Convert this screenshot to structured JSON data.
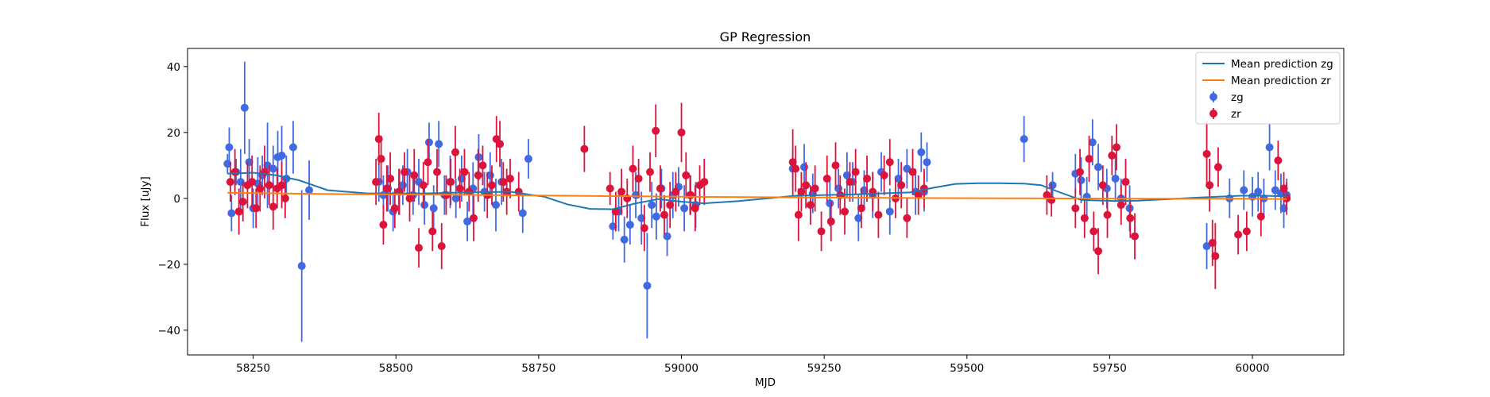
{
  "chart_data": {
    "type": "scatter",
    "title": "GP Regression",
    "xlabel": "MJD",
    "ylabel": "Flux [uJy]",
    "xlim": [
      58135,
      60160
    ],
    "ylim": [
      -47.5,
      45.5
    ],
    "xticks": [
      58250,
      58500,
      58750,
      59000,
      59250,
      59500,
      59750,
      60000
    ],
    "yticks": [
      -40,
      -20,
      0,
      20,
      40
    ],
    "grid": false,
    "legend_position": "top-right",
    "colors": {
      "zg": "#4169e1",
      "zr": "#dc143c",
      "mean_zg": "#1f77b4",
      "mean_zr": "#ff7f0e"
    },
    "lines": [
      {
        "name": "Mean prediction zg",
        "x": [
          58205,
          58250,
          58290,
          58330,
          58380,
          58450,
          58550,
          58620,
          58700,
          58760,
          58800,
          58840,
          58880,
          58920,
          58960,
          59000,
          59040,
          59100,
          59200,
          59300,
          59400,
          59440,
          59480,
          59520,
          59560,
          59600,
          59630,
          59660,
          59700,
          59760,
          59800,
          59900,
          59980,
          60020,
          60060
        ],
        "y": [
          7.5,
          7.8,
          7.0,
          5.5,
          2.5,
          1.5,
          1.5,
          1.8,
          2.0,
          0.5,
          -1.8,
          -3.2,
          -3.3,
          -1.5,
          -0.2,
          -1.0,
          -1.5,
          -0.8,
          0.8,
          1.2,
          1.8,
          3.2,
          4.4,
          4.6,
          4.6,
          4.5,
          4.0,
          2.0,
          -0.5,
          -0.8,
          -0.7,
          0.2,
          0.8,
          0.8,
          0.6
        ]
      },
      {
        "name": "Mean prediction zr",
        "x": [
          58205,
          58400,
          58600,
          58800,
          59000,
          59200,
          59400,
          59600,
          59800,
          60000,
          60060
        ],
        "y": [
          1.7,
          1.3,
          1.1,
          0.8,
          0.5,
          0.3,
          0.1,
          0.0,
          -0.1,
          -0.1,
          -0.2
        ]
      }
    ],
    "series": [
      {
        "name": "zg",
        "x": [
          58205,
          58208,
          58212,
          58220,
          58228,
          58235,
          58243,
          58250,
          58258,
          58266,
          58275,
          58285,
          58293,
          58300,
          58308,
          58320,
          58335,
          58348,
          58470,
          58478,
          58486,
          58495,
          58505,
          58512,
          58520,
          58530,
          58540,
          58550,
          58558,
          58566,
          58575,
          58585,
          58595,
          58605,
          58615,
          58625,
          58635,
          58645,
          58655,
          58665,
          58675,
          58685,
          58722,
          58732,
          58880,
          58890,
          58900,
          58910,
          58920,
          58930,
          58940,
          58948,
          58956,
          58965,
          58975,
          58985,
          58995,
          59005,
          59015,
          59025,
          59195,
          59215,
          59230,
          59260,
          59275,
          59290,
          59300,
          59310,
          59320,
          59335,
          59350,
          59365,
          59380,
          59395,
          59410,
          59420,
          59425,
          59430,
          59600,
          59650,
          59690,
          59700,
          59710,
          59720,
          59730,
          59745,
          59760,
          59770,
          59785,
          59920,
          59960,
          59985,
          60000,
          60010,
          60020,
          60030,
          60040,
          60050,
          60055,
          60060
        ],
        "y": [
          10.5,
          15.5,
          -4.5,
          8.0,
          5.0,
          27.5,
          11.0,
          -3.0,
          4.5,
          7.0,
          10.0,
          9.0,
          12.5,
          13.0,
          6.0,
          15.5,
          -20.5,
          2.5,
          5.0,
          1.0,
          3.0,
          -4.0,
          2.0,
          4.0,
          8.0,
          1.0,
          5.0,
          -2.0,
          17.0,
          -3.0,
          16.5,
          1.0,
          5.0,
          0.0,
          6.0,
          -7.0,
          3.0,
          12.5,
          2.0,
          7.0,
          -2.0,
          5.0,
          -4.5,
          12.0,
          -8.5,
          -4.0,
          -12.5,
          -8.0,
          1.0,
          -6.0,
          -26.5,
          -2.0,
          -5.5,
          3.0,
          -11.5,
          1.0,
          3.5,
          -3.0,
          1.0,
          -2.0,
          9.0,
          9.5,
          1.5,
          -1.5,
          3.0,
          7.0,
          5.0,
          -6.0,
          2.5,
          1.0,
          8.0,
          -4.0,
          6.0,
          9.0,
          2.0,
          14.0,
          2.0,
          11.0,
          18.0,
          4.0,
          7.5,
          5.5,
          0.5,
          17.0,
          9.5,
          3.0,
          6.0,
          0.0,
          -3.0,
          -14.5,
          0.0,
          2.5,
          0.5,
          2.0,
          0.0,
          15.5,
          2.5,
          1.5,
          -3.0,
          1.0
        ],
        "error": [
          3.0,
          6.0,
          5.5,
          4.0,
          10.0,
          14.0,
          7.0,
          6.0,
          8.0,
          6.0,
          13.0,
          7.0,
          8.0,
          9.0,
          7.0,
          8.0,
          23.0,
          9.0,
          6.0,
          6.0,
          7.0,
          6.0,
          7.0,
          6.0,
          7.0,
          6.0,
          7.0,
          6.0,
          6.0,
          7.0,
          7.0,
          6.0,
          8.0,
          6.0,
          7.0,
          6.0,
          8.0,
          7.0,
          6.0,
          7.0,
          8.0,
          7.0,
          6.0,
          6.0,
          4.0,
          6.0,
          7.0,
          6.0,
          7.0,
          8.0,
          16.0,
          7.0,
          7.0,
          6.0,
          6.0,
          7.0,
          6.0,
          7.0,
          6.0,
          7.0,
          6.0,
          7.0,
          6.0,
          7.0,
          6.0,
          7.0,
          6.0,
          7.0,
          6.0,
          7.0,
          6.0,
          7.0,
          6.0,
          6.0,
          7.0,
          6.0,
          6.0,
          6.0,
          7.0,
          4.0,
          6.0,
          7.0,
          6.0,
          7.0,
          7.0,
          6.0,
          7.0,
          6.0,
          7.0,
          7.0,
          6.0,
          6.0,
          6.0,
          6.0,
          6.0,
          7.0,
          6.0,
          6.0,
          6.0,
          5.0
        ]
      },
      {
        "name": "zr",
        "x": [
          58210,
          58218,
          58225,
          58232,
          58240,
          58248,
          58255,
          58262,
          58270,
          58278,
          58285,
          58292,
          58300,
          58306,
          58465,
          58470,
          58474,
          58478,
          58484,
          58490,
          58498,
          58506,
          58515,
          58524,
          58532,
          58540,
          58548,
          58556,
          58564,
          58572,
          58580,
          58588,
          58596,
          58604,
          58612,
          58620,
          58628,
          58636,
          58644,
          58652,
          58660,
          58668,
          58676,
          58682,
          58688,
          58694,
          58700,
          58715,
          58830,
          58875,
          58885,
          58895,
          58905,
          58915,
          58925,
          58935,
          58945,
          58955,
          58963,
          58970,
          58980,
          58990,
          59000,
          59008,
          59016,
          59024,
          59032,
          59040,
          59195,
          59200,
          59205,
          59210,
          59218,
          59226,
          59234,
          59245,
          59255,
          59262,
          59270,
          59278,
          59286,
          59295,
          59305,
          59315,
          59325,
          59335,
          59345,
          59355,
          59365,
          59375,
          59385,
          59395,
          59405,
          59415,
          59425,
          59640,
          59648,
          59690,
          59698,
          59706,
          59714,
          59722,
          59730,
          59738,
          59746,
          59754,
          59762,
          59770,
          59778,
          59786,
          59794,
          59920,
          59925,
          59930,
          59935,
          59940,
          59975,
          59990,
          60015,
          60045,
          60055,
          60060
        ],
        "y": [
          5.0,
          8.0,
          -4.0,
          -1.0,
          4.0,
          5.0,
          -3.0,
          3.0,
          8.0,
          4.0,
          -2.5,
          3.0,
          4.0,
          0.0,
          5.0,
          18.0,
          12.0,
          -8.0,
          3.0,
          6.0,
          -3.0,
          2.0,
          8.0,
          0.0,
          7.0,
          -15.0,
          4.0,
          11.0,
          -10.0,
          8.0,
          -14.5,
          1.0,
          5.0,
          14.0,
          3.0,
          8.0,
          2.0,
          -6.0,
          7.0,
          10.0,
          1.0,
          4.0,
          18.0,
          16.5,
          5.0,
          2.0,
          6.0,
          2.0,
          15.0,
          3.0,
          -4.0,
          2.0,
          0.0,
          9.0,
          6.0,
          -9.0,
          8.0,
          20.5,
          3.0,
          -5.0,
          -2.0,
          2.0,
          20.0,
          7.0,
          1.0,
          -3.0,
          4.0,
          5.0,
          11.0,
          9.0,
          -5.0,
          2.0,
          4.0,
          -2.0,
          3.0,
          -10.0,
          6.0,
          -7.0,
          10.0,
          1.0,
          -4.0,
          5.0,
          8.0,
          -3.0,
          6.0,
          2.0,
          -5.0,
          7.0,
          11.0,
          0.0,
          4.0,
          -6.0,
          8.0,
          1.0,
          3.0,
          1.0,
          -0.5,
          -3.0,
          8.0,
          -6.0,
          12.0,
          -10.0,
          -16.0,
          4.0,
          -5.0,
          13.0,
          15.5,
          -2.0,
          5.0,
          -6.0,
          -11.5,
          13.5,
          4.0,
          -13.5,
          -17.5,
          9.5,
          -11.0,
          -10.0,
          -5.5,
          11.5,
          3.0,
          0.0
        ],
        "error": [
          6.0,
          7.0,
          7.0,
          6.0,
          7.0,
          8.0,
          6.0,
          7.0,
          8.0,
          6.0,
          7.0,
          6.0,
          7.0,
          6.0,
          7.0,
          8.0,
          7.0,
          6.0,
          7.0,
          8.0,
          6.0,
          7.0,
          6.0,
          7.0,
          8.0,
          6.0,
          7.0,
          7.0,
          6.0,
          7.0,
          7.0,
          6.0,
          7.0,
          8.0,
          6.0,
          7.0,
          6.0,
          7.0,
          8.0,
          6.0,
          7.0,
          6.0,
          7.0,
          7.0,
          6.0,
          7.0,
          6.0,
          6.0,
          7.0,
          5.0,
          6.0,
          7.0,
          6.0,
          7.0,
          6.0,
          7.0,
          6.0,
          8.0,
          7.0,
          6.0,
          7.0,
          6.0,
          9.0,
          7.0,
          6.0,
          7.0,
          6.0,
          7.0,
          10.0,
          7.0,
          8.0,
          6.0,
          7.0,
          6.0,
          7.0,
          6.0,
          7.0,
          6.0,
          7.0,
          6.0,
          7.0,
          6.0,
          7.0,
          6.0,
          7.0,
          6.0,
          7.0,
          6.0,
          7.0,
          6.0,
          7.0,
          6.0,
          7.0,
          6.0,
          6.0,
          6.0,
          5.0,
          6.0,
          7.0,
          6.0,
          7.0,
          6.0,
          7.0,
          6.0,
          7.0,
          6.0,
          7.0,
          6.0,
          7.0,
          6.0,
          7.0,
          10.0,
          8.0,
          7.0,
          10.0,
          6.0,
          6.0,
          6.0,
          6.0,
          6.0,
          5.0,
          5.0
        ]
      }
    ]
  }
}
